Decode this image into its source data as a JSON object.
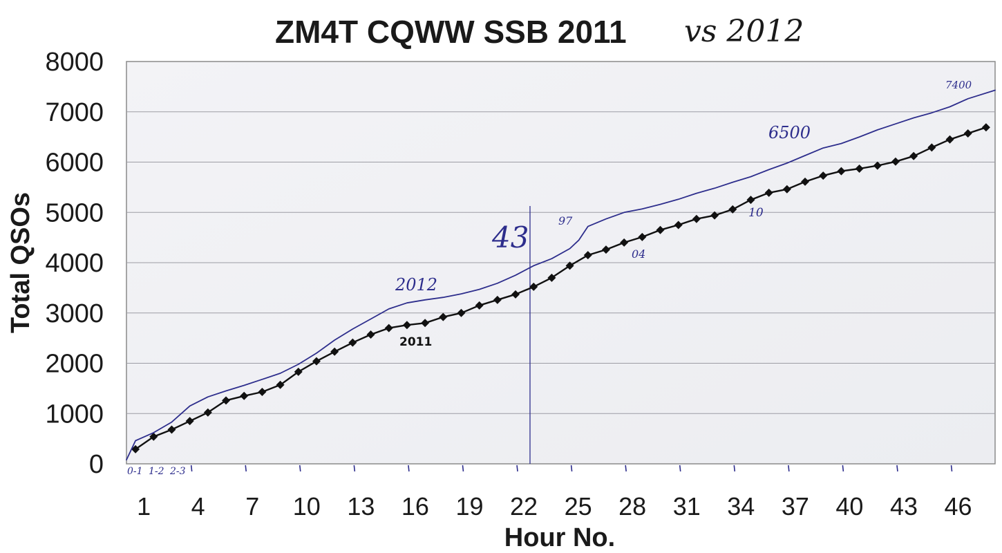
{
  "chart_data": {
    "type": "line",
    "title": "ZM4T CQWW SSB 2011",
    "title_handwritten": "vs 2012",
    "xlabel": "Hour No.",
    "ylabel": "Total QSOs",
    "xlim": [
      1,
      48
    ],
    "ylim": [
      0,
      8000
    ],
    "x_ticks": [
      1,
      4,
      7,
      10,
      13,
      16,
      19,
      22,
      25,
      28,
      31,
      34,
      37,
      40,
      43,
      46
    ],
    "y_ticks": [
      0,
      1000,
      2000,
      3000,
      4000,
      5000,
      6000,
      7000,
      8000
    ],
    "grid": "horizontal",
    "series": [
      {
        "name": "2011",
        "color": "#111111",
        "marker": "diamond",
        "x": [
          1,
          2,
          3,
          4,
          5,
          6,
          7,
          8,
          9,
          10,
          11,
          12,
          13,
          14,
          15,
          16,
          17,
          18,
          19,
          20,
          21,
          22,
          23,
          24,
          25,
          26,
          27,
          28,
          29,
          30,
          31,
          32,
          33,
          34,
          35,
          36,
          37,
          38,
          39,
          40,
          41,
          42,
          43,
          44,
          45,
          46,
          47,
          48
        ],
        "y": [
          290,
          540,
          680,
          850,
          1020,
          1260,
          1350,
          1430,
          1570,
          1830,
          2040,
          2230,
          2410,
          2570,
          2700,
          2760,
          2800,
          2920,
          3000,
          3150,
          3260,
          3370,
          3520,
          3700,
          3940,
          4150,
          4260,
          4400,
          4510,
          4650,
          4750,
          4870,
          4940,
          5060,
          5250,
          5390,
          5460,
          5610,
          5730,
          5820,
          5870,
          5930,
          6010,
          6120,
          6290,
          6450,
          6570,
          6690
        ]
      },
      {
        "name": "2012",
        "color": "#2d2d8c",
        "marker": "none",
        "x": [
          0.5,
          1,
          2,
          3,
          4,
          5,
          6,
          7,
          8,
          9,
          10,
          11,
          12,
          13,
          14,
          15,
          16,
          17,
          18,
          19,
          20,
          21,
          22,
          23,
          24,
          25,
          25.5,
          26,
          27,
          28,
          29,
          30,
          31,
          32,
          33,
          34,
          35,
          36,
          37,
          38,
          39,
          40,
          41,
          42,
          43,
          44,
          45,
          46,
          47,
          48.5
        ],
        "y": [
          80,
          460,
          620,
          830,
          1150,
          1330,
          1450,
          1560,
          1680,
          1800,
          1980,
          2200,
          2460,
          2680,
          2880,
          3080,
          3200,
          3260,
          3310,
          3380,
          3470,
          3590,
          3750,
          3940,
          4080,
          4280,
          4450,
          4720,
          4870,
          5000,
          5070,
          5160,
          5260,
          5380,
          5480,
          5600,
          5710,
          5850,
          5980,
          6130,
          6280,
          6370,
          6500,
          6640,
          6760,
          6880,
          6980,
          7100,
          7260,
          7430
        ]
      }
    ],
    "annotations": [
      {
        "text": "2012",
        "style": "handwritten"
      },
      {
        "text": "2011",
        "style": "printed"
      },
      {
        "text": "43",
        "style": "handwritten-large"
      },
      {
        "text": "97",
        "style": "handwritten"
      },
      {
        "text": "04",
        "style": "handwritten"
      },
      {
        "text": "10",
        "style": "handwritten"
      },
      {
        "text": "6500",
        "style": "handwritten"
      },
      {
        "text": "7400",
        "style": "handwritten"
      },
      {
        "text": "0-1",
        "style": "handwritten-axis"
      },
      {
        "text": "1-2",
        "style": "handwritten-axis"
      },
      {
        "text": "2-3",
        "style": "handwritten-axis"
      }
    ],
    "marker_line_hour": 22.8
  }
}
